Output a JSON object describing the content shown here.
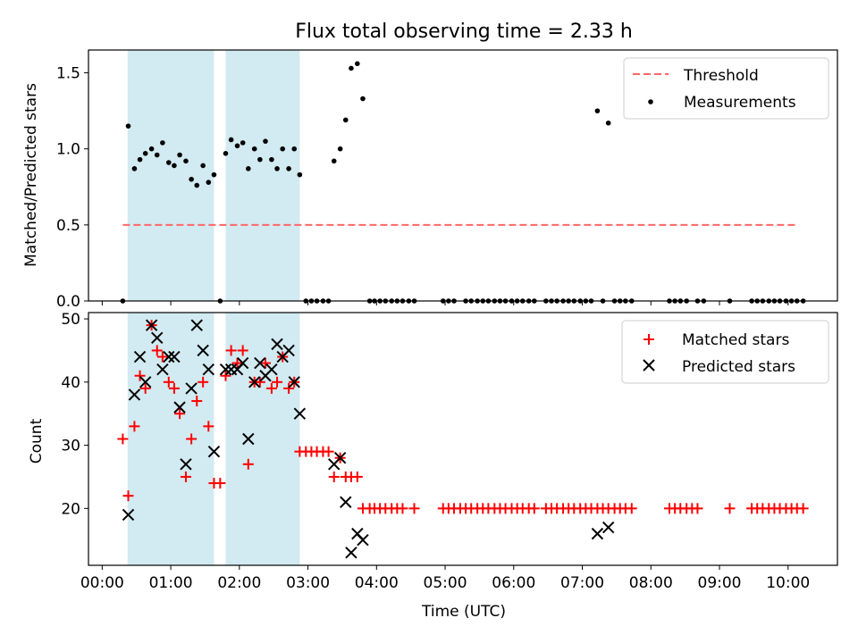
{
  "figure": {
    "title": "Flux total observing time = 2.33 h",
    "xlabel": "Time (UTC)",
    "x_tick_labels": [
      "00:00",
      "01:00",
      "02:00",
      "03:00",
      "04:00",
      "05:00",
      "06:00",
      "07:00",
      "08:00",
      "09:00",
      "10:00"
    ],
    "x_tick_hours": [
      0,
      1,
      2,
      3,
      4,
      5,
      6,
      7,
      8,
      9,
      10
    ],
    "xlim_hours": [
      -0.2,
      10.72
    ],
    "shaded_intervals_hours": [
      [
        0.37,
        1.63
      ],
      [
        1.8,
        2.88
      ]
    ],
    "colors": {
      "shade": "#add8e6",
      "threshold": "#ff6666",
      "matched": "#ff0000",
      "predicted": "#000000",
      "measurements": "#000000"
    }
  },
  "chart_data": [
    {
      "type": "scatter",
      "ylabel": "Matched/Predicted stars",
      "ylim": [
        0,
        1.65
      ],
      "y_ticks": [
        "0.0",
        "0.5",
        "1.0",
        "1.5"
      ],
      "y_tick_values": [
        0,
        0.5,
        1.0,
        1.5
      ],
      "legend_position": "top-right",
      "threshold": {
        "name": "Threshold",
        "value": 0.5,
        "x_range": [
          0.3,
          10.15
        ]
      },
      "series": [
        {
          "name": "Measurements",
          "x": [
            0.3,
            0.38,
            0.47,
            0.55,
            0.63,
            0.72,
            0.8,
            0.88,
            0.97,
            1.05,
            1.13,
            1.22,
            1.3,
            1.38,
            1.47,
            1.55,
            1.63,
            1.72,
            1.8,
            1.88,
            1.97,
            2.05,
            2.13,
            2.22,
            2.3,
            2.38,
            2.47,
            2.55,
            2.63,
            2.72,
            2.8,
            2.88,
            2.97,
            3.05,
            3.13,
            3.22,
            3.3,
            3.38,
            3.47,
            3.55,
            3.63,
            3.72,
            3.8,
            3.9,
            3.97,
            4.05,
            4.13,
            4.22,
            4.3,
            4.38,
            4.47,
            4.55,
            4.97,
            5.05,
            5.13,
            5.3,
            5.38,
            5.47,
            5.55,
            5.63,
            5.72,
            5.8,
            5.88,
            5.97,
            6.05,
            6.13,
            6.22,
            6.3,
            6.47,
            6.55,
            6.63,
            6.72,
            6.8,
            6.88,
            6.97,
            7.05,
            7.13,
            7.22,
            7.3,
            7.38,
            7.47,
            7.55,
            7.63,
            7.72,
            8.27,
            8.35,
            8.43,
            8.52,
            8.68,
            8.77,
            9.15,
            9.47,
            9.55,
            9.63,
            9.72,
            9.8,
            9.88,
            9.97,
            10.05,
            10.13,
            10.22
          ],
          "y": [
            0,
            1.15,
            0.87,
            0.93,
            0.97,
            1.0,
            0.96,
            1.04,
            0.91,
            0.89,
            0.96,
            0.92,
            0.8,
            0.76,
            0.89,
            0.78,
            0.83,
            0,
            0.97,
            1.06,
            1.02,
            1.04,
            0.87,
            1.0,
            0.93,
            1.05,
            0.93,
            0.87,
            1.0,
            0.87,
            1.0,
            0.83,
            0,
            0,
            0,
            0,
            0,
            0.92,
            1.0,
            1.19,
            1.53,
            1.56,
            1.33,
            0,
            0,
            0,
            0,
            0,
            0,
            0,
            0,
            0,
            0,
            0,
            0,
            0,
            0,
            0,
            0,
            0,
            0,
            0,
            0,
            0,
            0,
            0,
            0,
            0,
            0,
            0,
            0,
            0,
            0,
            0,
            0,
            0,
            0,
            1.25,
            0,
            1.17,
            0,
            0,
            0,
            0,
            0,
            0,
            0,
            0,
            0,
            0,
            0,
            0,
            0,
            0,
            0,
            0,
            0,
            0,
            0,
            0,
            0
          ]
        }
      ]
    },
    {
      "type": "scatter",
      "ylabel": "Count",
      "ylim": [
        11,
        51
      ],
      "y_ticks": [
        "20",
        "30",
        "40",
        "50"
      ],
      "y_tick_values": [
        20,
        30,
        40,
        50
      ],
      "legend_position": "top-right",
      "series": [
        {
          "name": "Matched stars",
          "marker": "+",
          "x": [
            0.3,
            0.38,
            0.47,
            0.55,
            0.63,
            0.72,
            0.8,
            0.88,
            0.97,
            1.05,
            1.13,
            1.22,
            1.3,
            1.38,
            1.47,
            1.55,
            1.63,
            1.72,
            1.8,
            1.88,
            1.97,
            2.05,
            2.13,
            2.22,
            2.3,
            2.38,
            2.47,
            2.55,
            2.63,
            2.72,
            2.8,
            2.88,
            2.97,
            3.05,
            3.13,
            3.22,
            3.3,
            3.38,
            3.47,
            3.55,
            3.63,
            3.72,
            3.8,
            3.9,
            3.97,
            4.05,
            4.13,
            4.22,
            4.3,
            4.38,
            4.55,
            4.97,
            5.05,
            5.13,
            5.22,
            5.3,
            5.38,
            5.47,
            5.55,
            5.63,
            5.72,
            5.8,
            5.88,
            5.97,
            6.05,
            6.13,
            6.22,
            6.3,
            6.47,
            6.55,
            6.63,
            6.72,
            6.8,
            6.88,
            6.97,
            7.05,
            7.13,
            7.22,
            7.3,
            7.38,
            7.47,
            7.55,
            7.63,
            7.72,
            8.27,
            8.35,
            8.43,
            8.52,
            8.6,
            8.68,
            9.15,
            9.47,
            9.55,
            9.63,
            9.72,
            9.8,
            9.88,
            9.97,
            10.05,
            10.13,
            10.22
          ],
          "y": [
            31,
            22,
            33,
            41,
            39,
            49,
            45,
            44,
            40,
            39,
            35,
            25,
            31,
            37,
            40,
            33,
            24,
            24,
            41,
            45,
            43,
            45,
            27,
            40,
            40,
            43,
            39,
            40,
            44,
            39,
            40,
            29,
            29,
            29,
            29,
            29,
            29,
            25,
            28,
            25,
            25,
            25,
            20,
            20,
            20,
            20,
            20,
            20,
            20,
            20,
            20,
            20,
            20,
            20,
            20,
            20,
            20,
            20,
            20,
            20,
            20,
            20,
            20,
            20,
            20,
            20,
            20,
            20,
            20,
            20,
            20,
            20,
            20,
            20,
            20,
            20,
            20,
            20,
            20,
            20,
            20,
            20,
            20,
            20,
            20,
            20,
            20,
            20,
            20,
            20,
            20,
            20,
            20,
            20,
            20,
            20,
            20,
            20,
            20,
            20,
            20
          ]
        },
        {
          "name": "Predicted stars",
          "marker": "x",
          "x": [
            0.38,
            0.47,
            0.55,
            0.63,
            0.72,
            0.8,
            0.88,
            0.97,
            1.05,
            1.13,
            1.22,
            1.3,
            1.38,
            1.47,
            1.55,
            1.63,
            1.8,
            1.88,
            1.97,
            2.05,
            2.13,
            2.22,
            2.3,
            2.38,
            2.47,
            2.55,
            2.63,
            2.72,
            2.8,
            2.88,
            3.38,
            3.47,
            3.55,
            3.63,
            3.72,
            3.8,
            7.22,
            7.38
          ],
          "y": [
            19,
            38,
            44,
            40,
            49,
            47,
            42,
            44,
            44,
            36,
            27,
            39,
            49,
            45,
            42,
            29,
            42,
            42,
            42,
            43,
            31,
            40,
            43,
            41,
            42,
            46,
            44,
            45,
            40,
            35,
            27,
            28,
            21,
            13,
            16,
            15,
            16,
            17
          ]
        }
      ]
    }
  ],
  "legends": {
    "top": [
      "Threshold",
      "Measurements"
    ],
    "bottom": [
      "Matched stars",
      "Predicted stars"
    ]
  }
}
